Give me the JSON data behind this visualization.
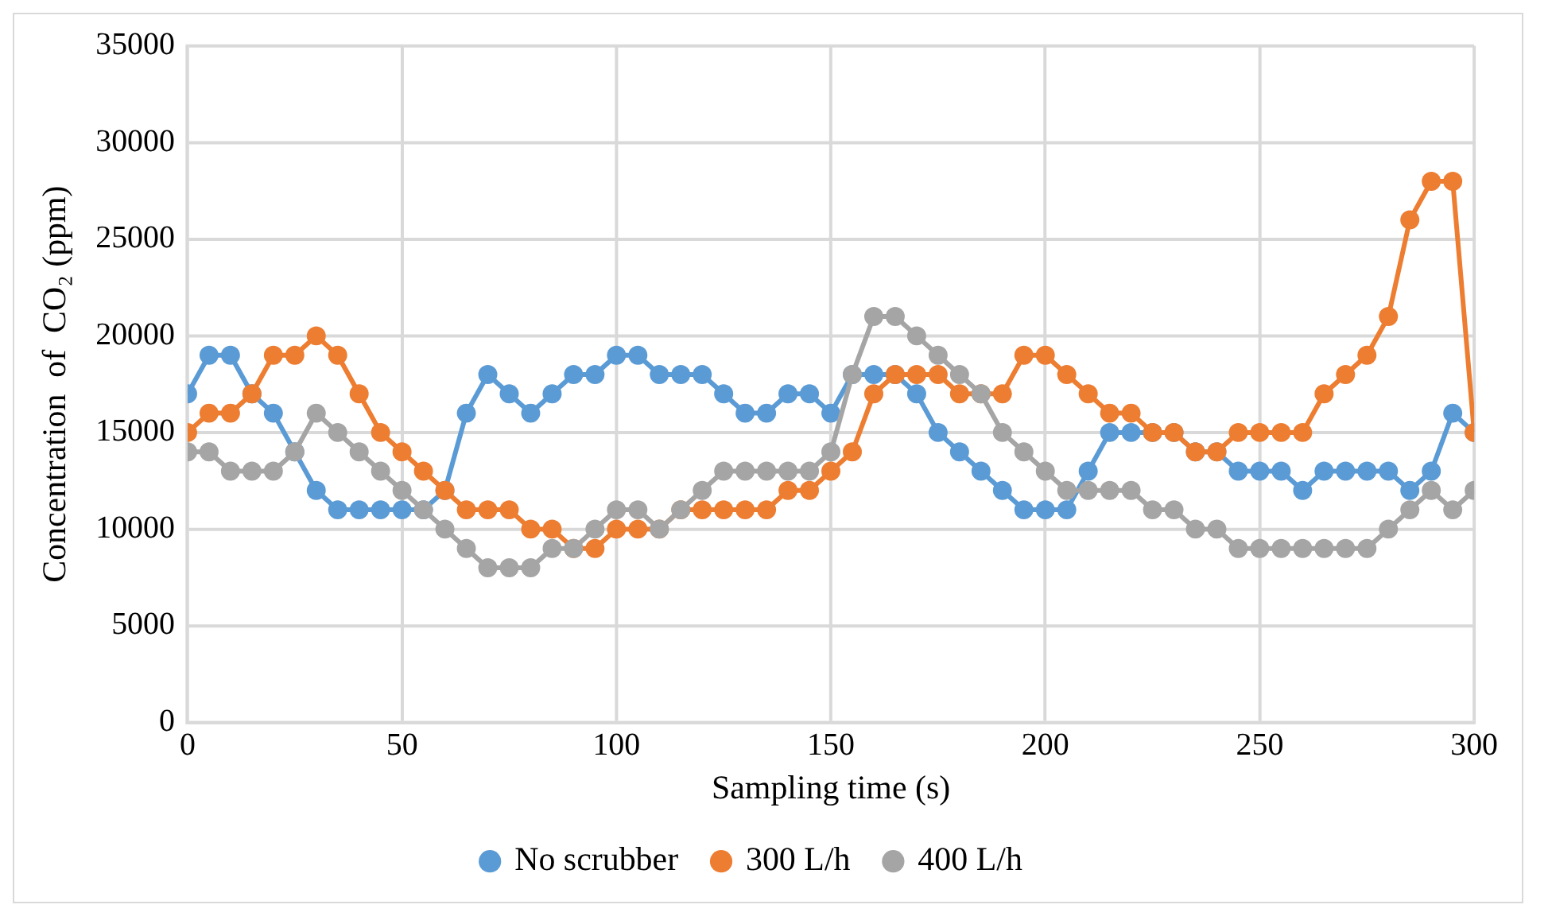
{
  "chart_data": {
    "type": "line",
    "xlabel": "Sampling time (s)",
    "ylabel": "Concentration  of  CO₂ (ppm)",
    "x": [
      0,
      5,
      10,
      15,
      20,
      25,
      30,
      35,
      40,
      45,
      50,
      55,
      60,
      65,
      70,
      75,
      80,
      85,
      90,
      95,
      100,
      105,
      110,
      115,
      120,
      125,
      130,
      135,
      140,
      145,
      150,
      155,
      160,
      165,
      170,
      175,
      180,
      185,
      190,
      195,
      200,
      205,
      210,
      215,
      220,
      225,
      230,
      235,
      240,
      245,
      250,
      255,
      260,
      265,
      270,
      275,
      280,
      285,
      290,
      295,
      300
    ],
    "series": [
      {
        "name": "No scrubber",
        "color": "#5b9bd5",
        "values": [
          17000,
          19000,
          19000,
          17000,
          16000,
          14000,
          12000,
          11000,
          11000,
          11000,
          11000,
          11000,
          12000,
          16000,
          18000,
          17000,
          16000,
          17000,
          18000,
          18000,
          19000,
          19000,
          18000,
          18000,
          18000,
          17000,
          16000,
          16000,
          17000,
          17000,
          16000,
          18000,
          18000,
          18000,
          17000,
          15000,
          14000,
          13000,
          12000,
          11000,
          11000,
          11000,
          13000,
          15000,
          15000,
          15000,
          15000,
          14000,
          14000,
          13000,
          13000,
          13000,
          12000,
          13000,
          13000,
          13000,
          13000,
          12000,
          13000,
          16000,
          15000
        ]
      },
      {
        "name": "300 L/h",
        "color": "#ed7d31",
        "values": [
          15000,
          16000,
          16000,
          17000,
          19000,
          19000,
          20000,
          19000,
          17000,
          15000,
          14000,
          13000,
          12000,
          11000,
          11000,
          11000,
          10000,
          10000,
          9000,
          9000,
          10000,
          10000,
          10000,
          11000,
          11000,
          11000,
          11000,
          11000,
          12000,
          12000,
          13000,
          14000,
          17000,
          18000,
          18000,
          18000,
          17000,
          17000,
          17000,
          19000,
          19000,
          18000,
          17000,
          16000,
          16000,
          15000,
          15000,
          14000,
          14000,
          15000,
          15000,
          15000,
          15000,
          17000,
          18000,
          19000,
          21000,
          26000,
          28000,
          28000,
          15000
        ]
      },
      {
        "name": "400 L/h",
        "color": "#a5a5a5",
        "values": [
          14000,
          14000,
          13000,
          13000,
          13000,
          14000,
          16000,
          15000,
          14000,
          13000,
          12000,
          11000,
          10000,
          9000,
          8000,
          8000,
          8000,
          9000,
          9000,
          10000,
          11000,
          11000,
          10000,
          11000,
          12000,
          13000,
          13000,
          13000,
          13000,
          13000,
          14000,
          18000,
          21000,
          21000,
          20000,
          19000,
          18000,
          17000,
          15000,
          14000,
          13000,
          12000,
          12000,
          12000,
          12000,
          11000,
          11000,
          10000,
          10000,
          9000,
          9000,
          9000,
          9000,
          9000,
          9000,
          9000,
          10000,
          11000,
          12000,
          11000,
          12000
        ]
      }
    ],
    "xlim": [
      0,
      300
    ],
    "xticks": [
      0,
      50,
      100,
      150,
      200,
      250,
      300
    ],
    "ylim": [
      0,
      35000
    ],
    "yticks": [
      0,
      5000,
      10000,
      15000,
      20000,
      25000,
      30000,
      35000
    ],
    "grid": true,
    "legend": "bottom",
    "marker": "circle",
    "line_style": "solid"
  }
}
